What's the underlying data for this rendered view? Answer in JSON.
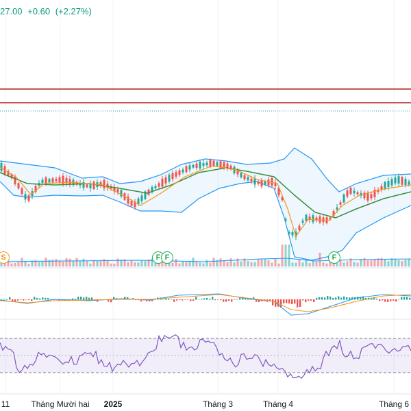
{
  "header": {
    "price": "27.00",
    "change": "+0.60",
    "change_pct": "(+2.27%)"
  },
  "colors": {
    "up": "#26a69a",
    "down": "#ef5350",
    "bb_fill": "rgba(33,150,243,0.08)",
    "bb_band": "#2196f3",
    "ma_fast": "#f7931a",
    "ma_slow": "#388e3c",
    "level_line": "#b71c1c",
    "dotted_line": "#26a69a",
    "rsi_line": "#7e57c2",
    "rsi_fill": "rgba(126,87,194,0.1)"
  },
  "events": [
    {
      "type": "s",
      "label": "S"
    },
    {
      "type": "f",
      "label": "F"
    },
    {
      "type": "f",
      "label": "F"
    },
    {
      "type": "f",
      "label": "F"
    }
  ],
  "time_axis": [
    {
      "label": "11",
      "bold": false
    },
    {
      "label": "Tháng Mười hai",
      "bold": false
    },
    {
      "label": "2025",
      "bold": true
    },
    {
      "label": "Tháng 3",
      "bold": false
    },
    {
      "label": "Tháng 4",
      "bold": false
    },
    {
      "label": "Tháng 6",
      "bold": false
    }
  ]
}
